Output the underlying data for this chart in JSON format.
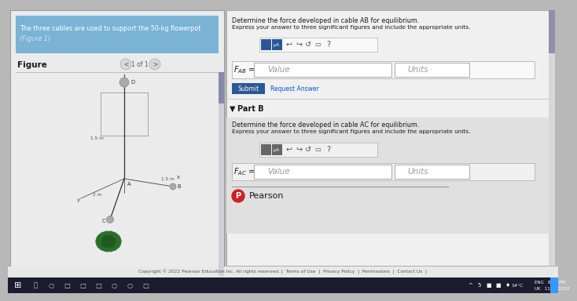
{
  "bg_color": "#b8b8b8",
  "left_panel_bg": "#ebebeb",
  "right_panel_bg": "#f0f0f0",
  "problem_text_line1": "The three cables are used to support the 50-kg flowerpot",
  "problem_text_line2": "(Figure 1)",
  "figure_label": "Figure",
  "nav_text": "1 of 1",
  "part_a_title": "Determine the force developed in cable AB for equilibrium.",
  "part_a_sub": "Express your answer to three significant figures and include the appropriate units.",
  "value_placeholder": "Value",
  "units_placeholder": "Units",
  "submit_text": "Submit",
  "request_text": "Request Answer",
  "part_b_header": "Part B",
  "part_b_title": "Determine the force developed in cable AC for equilibrium.",
  "part_b_sub": "Express your answer to three significant figures and include the appropriate units.",
  "pearson_text": "Pearson",
  "copyright_text": "Copyright © 2022 Pearson Education Inc. All rights reserved. |  Terms of Use  |  Privacy Policy  |  Permissions  |  Contact Us  |",
  "taskbar_text": "14°C",
  "time_line1": "ENG   8:38 PM",
  "time_line2": "UK   11/10/2022",
  "toolbar_bg": "#2c2c2c",
  "submit_btn_color": "#2b5797",
  "input_box_color": "#ffffff",
  "blue_header_bg": "#7ab3d4",
  "white_text": "#ffffff",
  "dark_text": "#1a1a1a",
  "link_color": "#1155cc",
  "divider_color": "#cccccc",
  "scrollbar_thumb": "#8888aa",
  "part_b_bg": "#e0e0e0",
  "icon_blue": "#2b5797",
  "icon_gray": "#666666"
}
